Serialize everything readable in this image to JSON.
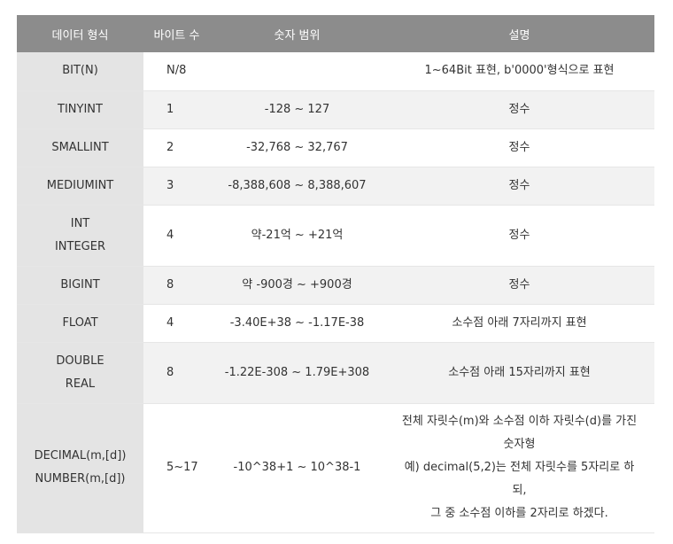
{
  "headers": [
    "데이터 형식",
    "바이트 수",
    "숫자 범위",
    "설명"
  ],
  "rows": [
    {
      "type": [
        "BIT(N)"
      ],
      "bytes": "N/8",
      "range": "",
      "desc": [
        "1~64Bit 표현, b'0000'형식으로 표현"
      ]
    },
    {
      "type": [
        "TINYINT"
      ],
      "bytes": "1",
      "range": "-128 ~ 127",
      "desc": [
        "정수"
      ]
    },
    {
      "type": [
        "SMALLINT"
      ],
      "bytes": "2",
      "range": "-32,768 ~ 32,767",
      "desc": [
        "정수"
      ]
    },
    {
      "type": [
        "MEDIUMINT"
      ],
      "bytes": "3",
      "range": "-8,388,608 ~ 8,388,607",
      "desc": [
        "정수"
      ]
    },
    {
      "type": [
        "INT",
        "INTEGER"
      ],
      "bytes": "4",
      "range": "약-21억 ~ +21억",
      "desc": [
        "정수"
      ]
    },
    {
      "type": [
        "BIGINT"
      ],
      "bytes": "8",
      "range": "약 -900경 ~ +900경",
      "desc": [
        "정수"
      ]
    },
    {
      "type": [
        "FLOAT"
      ],
      "bytes": "4",
      "range": "-3.40E+38 ~ -1.17E-38",
      "desc": [
        "소수점 아래 7자리까지 표현"
      ]
    },
    {
      "type": [
        "DOUBLE",
        "REAL"
      ],
      "bytes": "8",
      "range": "-1.22E-308 ~ 1.79E+308",
      "desc": [
        "소수점 아래 15자리까지 표현"
      ]
    },
    {
      "type": [
        "DECIMAL(m,[d])",
        "NUMBER(m,[d])"
      ],
      "bytes": "5~17",
      "range": "-10^38+1 ~ 10^38-1",
      "desc": [
        "전체 자릿수(m)와 소수점 이하 자릿수(d)를 가진",
        "숫자형",
        "예) decimal(5,2)는 전체 자릿수를 5자리로 하",
        "되,",
        "그 중 소수점 이하를 2자리로 하겠다."
      ]
    }
  ]
}
